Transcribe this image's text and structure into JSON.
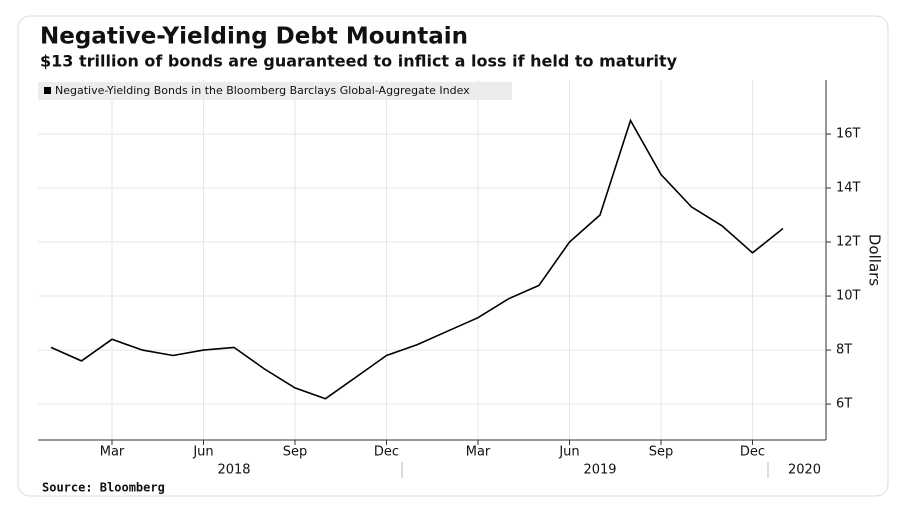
{
  "chart_data": {
    "type": "line",
    "title": "Negative-Yielding Debt Mountain",
    "subtitle": "$13 trillion of bonds are guaranteed to inflict a loss if held to maturity",
    "y_label": "Dollars",
    "source": "Source: Bloomberg",
    "x": [
      "2018-01",
      "2018-02",
      "2018-03",
      "2018-04",
      "2018-05",
      "2018-06",
      "2018-07",
      "2018-08",
      "2018-09",
      "2018-10",
      "2018-11",
      "2018-12",
      "2019-01",
      "2019-02",
      "2019-03",
      "2019-04",
      "2019-05",
      "2019-06",
      "2019-07",
      "2019-08",
      "2019-09",
      "2019-10",
      "2019-11",
      "2019-12",
      "2020-01"
    ],
    "series": [
      {
        "name": "Negative-Yielding Bonds in the Bloomberg Barclays Global-Aggregate Index",
        "color": "#000000",
        "values": [
          8.1,
          7.6,
          8.4,
          8.0,
          7.8,
          8.0,
          8.1,
          7.3,
          6.6,
          6.2,
          7.0,
          7.8,
          8.2,
          8.7,
          9.2,
          9.9,
          10.4,
          12.0,
          13.0,
          16.5,
          14.5,
          13.3,
          12.6,
          11.6,
          12.5
        ]
      }
    ],
    "ylim": [
      4.67,
      18.0
    ],
    "yticks": [
      {
        "value": 6,
        "label": "6T"
      },
      {
        "value": 8,
        "label": "8T"
      },
      {
        "value": 10,
        "label": "10T"
      },
      {
        "value": 12,
        "label": "12T"
      },
      {
        "value": 14,
        "label": "14T"
      },
      {
        "value": 16,
        "label": "16T"
      }
    ],
    "xticks": [
      {
        "value": "2018-03",
        "label": "Mar"
      },
      {
        "value": "2018-06",
        "label": "Jun"
      },
      {
        "value": "2018-09",
        "label": "Sep"
      },
      {
        "value": "2018-12",
        "label": "Dec"
      },
      {
        "value": "2019-03",
        "label": "Mar"
      },
      {
        "value": "2019-06",
        "label": "Jun"
      },
      {
        "value": "2019-09",
        "label": "Sep"
      },
      {
        "value": "2019-12",
        "label": "Dec"
      }
    ],
    "year_labels": [
      "2018",
      "2019",
      "2020"
    ],
    "grid": true
  }
}
